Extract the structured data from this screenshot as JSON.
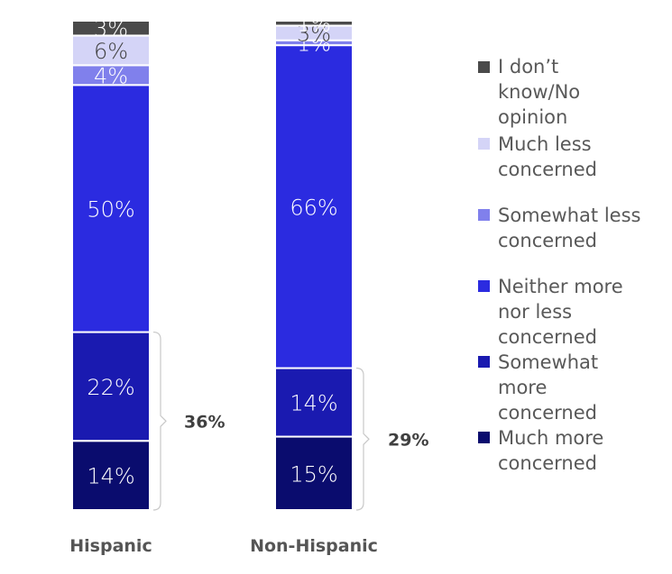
{
  "chart_data": {
    "type": "bar",
    "stacked": true,
    "categories": [
      "Hispanic",
      "Non-Hispanic"
    ],
    "series": [
      {
        "name": "Much more concerned",
        "color": "#0a0c6e",
        "label_color": "#ffffff",
        "values": [
          14,
          15
        ],
        "labels": [
          "14%",
          "15%"
        ]
      },
      {
        "name": "Somewhat more concerned",
        "color": "#1a1ab0",
        "label_color": "#ffffff",
        "values": [
          22,
          14
        ],
        "labels": [
          "22%",
          "14%"
        ]
      },
      {
        "name": "Neither more nor less concerned",
        "color": "#2b2be0",
        "label_color": "#ffffff",
        "values": [
          50,
          66
        ],
        "labels": [
          "50%",
          "66%"
        ]
      },
      {
        "name": "Somewhat less concerned",
        "color": "#8080ec",
        "label_color": "#ffffff",
        "values": [
          4,
          1
        ],
        "labels": [
          "4%",
          "1%"
        ]
      },
      {
        "name": "Much less concerned",
        "color": "#d4d4f7",
        "label_color": "#404040",
        "values": [
          6,
          3
        ],
        "labels": [
          "6%",
          "3%"
        ]
      },
      {
        "name": "I don’t know/No opinion",
        "color": "#4a4a4a",
        "label_color": "#ffffff",
        "values": [
          3,
          1
        ],
        "labels": [
          "3%",
          "1%"
        ]
      }
    ],
    "brackets": [
      {
        "category": "Hispanic",
        "label": "36%"
      },
      {
        "category": "Non-Hispanic",
        "label": "29%"
      }
    ],
    "legend": {
      "position": "right",
      "items": [
        {
          "label_lines": [
            "I don’t",
            "know/No",
            "opinion"
          ],
          "color": "#4a4a4a"
        },
        {
          "label_lines": [
            "Much less",
            "concerned"
          ],
          "color": "#d4d4f7"
        },
        {
          "label_lines": [
            "Somewhat less",
            "concerned"
          ],
          "color": "#8080ec"
        },
        {
          "label_lines": [
            "Neither more",
            "nor less",
            "concerned"
          ],
          "color": "#2b2be0"
        },
        {
          "label_lines": [
            "Somewhat",
            "more",
            "concerned"
          ],
          "color": "#1a1ab0"
        },
        {
          "label_lines": [
            "Much more",
            "concerned"
          ],
          "color": "#0a0c6e"
        }
      ]
    },
    "ylim": [
      0,
      100
    ],
    "grid": false
  }
}
